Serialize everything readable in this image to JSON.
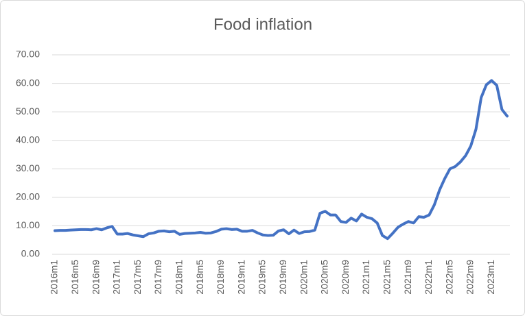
{
  "chart_data": {
    "type": "line",
    "title": "Food inflation",
    "categories": [
      "2016m1",
      null,
      null,
      null,
      "2016m5",
      null,
      null,
      null,
      "2016m9",
      null,
      null,
      null,
      "2017m1",
      null,
      null,
      null,
      "2017m5",
      null,
      null,
      null,
      "2017m9",
      null,
      null,
      null,
      "2018m1",
      null,
      null,
      null,
      "2018m5",
      null,
      null,
      null,
      "2018m9",
      null,
      null,
      null,
      "2019m1",
      null,
      null,
      null,
      "2019m5",
      null,
      null,
      null,
      "2019m9",
      null,
      null,
      null,
      "2020m1",
      null,
      null,
      null,
      "2020m5",
      null,
      null,
      null,
      "2020m9",
      null,
      null,
      null,
      "2021m1",
      null,
      null,
      null,
      "2021m5",
      null,
      null,
      null,
      "2021m9",
      null,
      null,
      null,
      "2022m1",
      null,
      null,
      null,
      "2022m5",
      null,
      null,
      null,
      "2022m9",
      null,
      null,
      null,
      "2023m1",
      null,
      null,
      null
    ],
    "values": [
      8.3,
      8.4,
      8.4,
      8.5,
      8.6,
      8.7,
      8.7,
      8.6,
      9.0,
      8.6,
      9.3,
      9.8,
      7.1,
      7.1,
      7.3,
      6.8,
      6.5,
      6.2,
      7.2,
      7.5,
      8.1,
      8.2,
      7.9,
      8.1,
      7.0,
      7.3,
      7.4,
      7.5,
      7.7,
      7.4,
      7.5,
      8.0,
      8.8,
      9.0,
      8.7,
      8.8,
      8.1,
      8.1,
      8.4,
      7.5,
      6.8,
      6.6,
      6.7,
      8.2,
      8.6,
      7.2,
      8.5,
      7.3,
      7.9,
      8.0,
      8.5,
      14.4,
      15.1,
      13.8,
      13.8,
      11.5,
      11.2,
      12.7,
      11.7,
      14.1,
      13.0,
      12.5,
      11.0,
      6.6,
      5.5,
      7.4,
      9.5,
      10.6,
      11.5,
      11.0,
      13.2,
      13.0,
      13.8,
      17.4,
      22.6,
      26.6,
      30.0,
      30.8,
      32.4,
      34.6,
      38.0,
      43.9,
      55.0,
      59.5,
      61.0,
      59.3,
      50.8,
      48.5
    ],
    "color": "#4472c4",
    "ylim": [
      0,
      70
    ],
    "yticks": [
      {
        "value": 0,
        "label": "0.00"
      },
      {
        "value": 10,
        "label": "10.00"
      },
      {
        "value": 20,
        "label": "20.00"
      },
      {
        "value": 30,
        "label": "30.00"
      },
      {
        "value": 40,
        "label": "40.00"
      },
      {
        "value": 50,
        "label": "50.00"
      },
      {
        "value": 60,
        "label": "60.00"
      },
      {
        "value": 70,
        "label": "70.00"
      }
    ],
    "grid": true
  }
}
